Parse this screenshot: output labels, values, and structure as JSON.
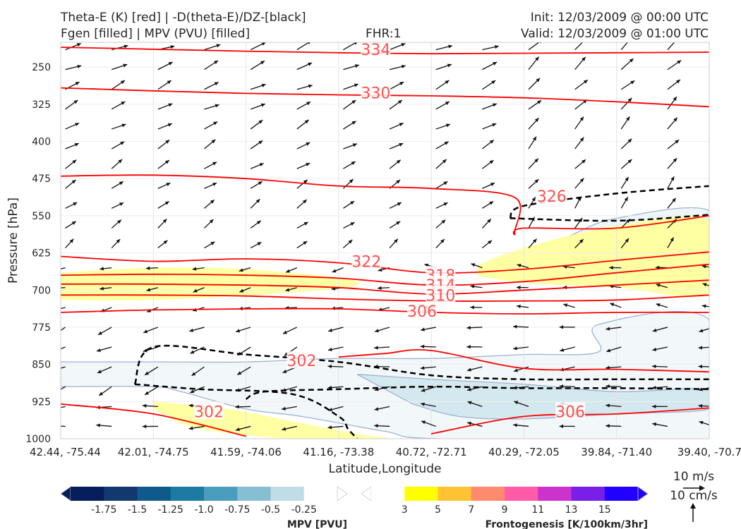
{
  "header": {
    "title_line1": "Theta-E (K) [red] | -D(theta-E)/DZ-[black]",
    "title_line2": "Fgen [filled] | MPV (PVU) [filled]",
    "fhr": "FHR:1",
    "init": "Init: 12/03/2009 @ 00:00 UTC",
    "valid": "Valid: 12/03/2009 @ 01:00 UTC"
  },
  "chart_data": {
    "type": "cross-section",
    "xlabel": "Latitude,Longitude",
    "ylabel": "Pressure [hPa]",
    "x_ticks": [
      "42.44, -75.44",
      "42.01, -74.75",
      "41.59, -74.06",
      "41.16, -73.38",
      "40.72, -72.71",
      "40.29, -72.05",
      "39.84, -71.40",
      "39.40, -70.7"
    ],
    "y_ticks": [
      250,
      325,
      400,
      475,
      550,
      625,
      700,
      775,
      850,
      925,
      1000
    ],
    "ylim": [
      200,
      1000
    ],
    "theta_e_contours": [
      {
        "label": "334",
        "points": [
          [
            0,
            210
          ],
          [
            1,
            214
          ],
          [
            2,
            218
          ],
          [
            3,
            221
          ],
          [
            4,
            223
          ],
          [
            5,
            222
          ],
          [
            6,
            221
          ],
          [
            7,
            220
          ]
        ]
      },
      {
        "label": "330",
        "points": [
          [
            0,
            292
          ],
          [
            1,
            298
          ],
          [
            2,
            303
          ],
          [
            3,
            306
          ],
          [
            4,
            308
          ],
          [
            5,
            312
          ],
          [
            6,
            320
          ],
          [
            7,
            330
          ]
        ]
      },
      {
        "label": "326",
        "points": [
          [
            0,
            470
          ],
          [
            1,
            468
          ],
          [
            2,
            475
          ],
          [
            3,
            490
          ],
          [
            4,
            495
          ],
          [
            4.9,
            513
          ],
          [
            4.9,
            585
          ],
          [
            5,
            575
          ],
          [
            6,
            575
          ],
          [
            7,
            550
          ]
        ]
      },
      {
        "label": "322",
        "points": [
          [
            0,
            632
          ],
          [
            1,
            642
          ],
          [
            2,
            637
          ],
          [
            3,
            645
          ],
          [
            4,
            665
          ],
          [
            5,
            658
          ],
          [
            6,
            640
          ],
          [
            7,
            623
          ]
        ]
      },
      {
        "label": "318",
        "points": [
          [
            0,
            670
          ],
          [
            1,
            668
          ],
          [
            2,
            670
          ],
          [
            3,
            676
          ],
          [
            4,
            690
          ],
          [
            5,
            683
          ],
          [
            6,
            665
          ],
          [
            7,
            648
          ]
        ]
      },
      {
        "label": "314",
        "points": [
          [
            0,
            688
          ],
          [
            1,
            688
          ],
          [
            2,
            690
          ],
          [
            3,
            695
          ],
          [
            4,
            708
          ],
          [
            5,
            700
          ],
          [
            6,
            690
          ],
          [
            7,
            680
          ]
        ]
      },
      {
        "label": "310",
        "points": [
          [
            0,
            710
          ],
          [
            1,
            710
          ],
          [
            2,
            712
          ],
          [
            3,
            718
          ],
          [
            4,
            722
          ],
          [
            5,
            722
          ],
          [
            6,
            720
          ],
          [
            7,
            710
          ]
        ]
      },
      {
        "label": "306",
        "points": [
          [
            0,
            745
          ],
          [
            1,
            740
          ],
          [
            2,
            738
          ],
          [
            3,
            738
          ],
          [
            4,
            745
          ],
          [
            5,
            748
          ],
          [
            6,
            745
          ],
          [
            7,
            745
          ]
        ]
      },
      {
        "label": "302",
        "points": [
          [
            3,
            835
          ],
          [
            3.5,
            828
          ],
          [
            4,
            822
          ],
          [
            5,
            858
          ],
          [
            6,
            860
          ],
          [
            7,
            865
          ]
        ]
      },
      {
        "label": "306",
        "points": [
          [
            4,
            990
          ],
          [
            5,
            955
          ],
          [
            6,
            950
          ],
          [
            7,
            938
          ]
        ]
      },
      {
        "label": "302",
        "points": [
          [
            0,
            930
          ],
          [
            1,
            950
          ],
          [
            2,
            995
          ]
        ]
      }
    ],
    "stability_dashed": [
      [
        [
          0.8,
          890
        ],
        [
          1.0,
          815
        ],
        [
          2,
          830
        ],
        [
          3,
          845
        ],
        [
          4,
          872
        ],
        [
          5,
          880
        ],
        [
          6,
          880
        ],
        [
          7,
          880
        ]
      ],
      [
        [
          0.8,
          890
        ],
        [
          1.5,
          900
        ],
        [
          2.5,
          910
        ],
        [
          3,
          955
        ],
        [
          3.1,
          980
        ],
        [
          3.2,
          1000
        ]
      ],
      [
        [
          2,
          920
        ],
        [
          2.2,
          905
        ],
        [
          3,
          900
        ],
        [
          4,
          895
        ],
        [
          5,
          898
        ],
        [
          6,
          898
        ],
        [
          7,
          900
        ]
      ],
      [
        [
          4.85,
          555
        ],
        [
          5,
          530
        ],
        [
          6,
          505
        ],
        [
          7,
          490
        ]
      ],
      [
        [
          4.85,
          555
        ],
        [
          6,
          560
        ],
        [
          7,
          548
        ]
      ]
    ],
    "frontogenesis_fill": [
      {
        "level": 3,
        "color": "#ffff99",
        "points": [
          [
            0,
            665
          ],
          [
            1,
            655
          ],
          [
            2,
            658
          ],
          [
            3,
            675
          ],
          [
            3.2,
            690
          ],
          [
            2.5,
            705
          ],
          [
            1,
            720
          ],
          [
            0,
            720
          ]
        ]
      },
      {
        "level": 3,
        "color": "#ffff99",
        "points": [
          [
            4.5,
            650
          ],
          [
            5,
            615
          ],
          [
            6,
            570
          ],
          [
            7,
            560
          ],
          [
            7,
            705
          ],
          [
            6,
            695
          ],
          [
            5,
            685
          ],
          [
            4.5,
            672
          ]
        ]
      },
      {
        "level": 3,
        "color": "#ffff99",
        "points": [
          [
            1,
            925
          ],
          [
            1.8,
            940
          ],
          [
            2.5,
            965
          ],
          [
            3.2,
            990
          ],
          [
            3.5,
            1000
          ],
          [
            2.5,
            1000
          ],
          [
            1.5,
            980
          ],
          [
            1,
            940
          ]
        ]
      }
    ],
    "mpv_fill": [
      {
        "level": -0.25,
        "color": "#f2f8fa",
        "points": [
          [
            0,
            845
          ],
          [
            1,
            845
          ],
          [
            2,
            845
          ],
          [
            3,
            838
          ],
          [
            4,
            838
          ],
          [
            5,
            830
          ],
          [
            5.8,
            825
          ],
          [
            5.8,
            770
          ],
          [
            7,
            760
          ],
          [
            7,
            1000
          ],
          [
            4.1,
            1000
          ],
          [
            3.5,
            985
          ],
          [
            2.6,
            955
          ],
          [
            2,
            940
          ],
          [
            1.3,
            905
          ],
          [
            1,
            895
          ],
          [
            0,
            895
          ]
        ]
      },
      {
        "level": -0.25,
        "color": "#eef6f8",
        "points": [
          [
            5.5,
            590
          ],
          [
            6,
            555
          ],
          [
            7,
            540
          ],
          [
            7,
            660
          ],
          [
            6,
            665
          ],
          [
            5.5,
            630
          ]
        ]
      },
      {
        "level": -0.5,
        "color": "#d4e9ef",
        "points": [
          [
            3.2,
            870
          ],
          [
            4,
            880
          ],
          [
            5,
            890
          ],
          [
            6,
            905
          ],
          [
            7,
            900
          ],
          [
            7,
            940
          ],
          [
            6,
            950
          ],
          [
            5,
            960
          ],
          [
            4.3,
            955
          ],
          [
            3.8,
            930
          ]
        ]
      }
    ],
    "colorbars": [
      {
        "label": "MPV [PVU]",
        "ticks": [
          "-1.75",
          "-1.5",
          "-1.25",
          "-1.0",
          "-0.75",
          "-0.5",
          "-0.25"
        ],
        "colors": [
          "#061e5c",
          "#11386f",
          "#0f5a8c",
          "#1d7aa3",
          "#4a9dbd",
          "#86bed3",
          "#c0dde7",
          "#ffffff"
        ]
      },
      {
        "label": "Frontogenesis [K/100km/3hr]",
        "ticks": [
          "3",
          "5",
          "7",
          "9",
          "11",
          "13",
          "15"
        ],
        "colors": [
          "#ffffff",
          "#ffff00",
          "#ffc233",
          "#ff8a6e",
          "#ff5ba8",
          "#cc33cc",
          "#7a1fe8",
          "#2200ff"
        ]
      }
    ],
    "vector_keys": {
      "u_label": "10 m/s",
      "w_label": "10 cm/s"
    },
    "colors": {
      "theta_e": "#ff0000",
      "contour_label": "#ff5050",
      "mpv_outline": "#9fb2cf",
      "vectors": "#111111"
    }
  }
}
